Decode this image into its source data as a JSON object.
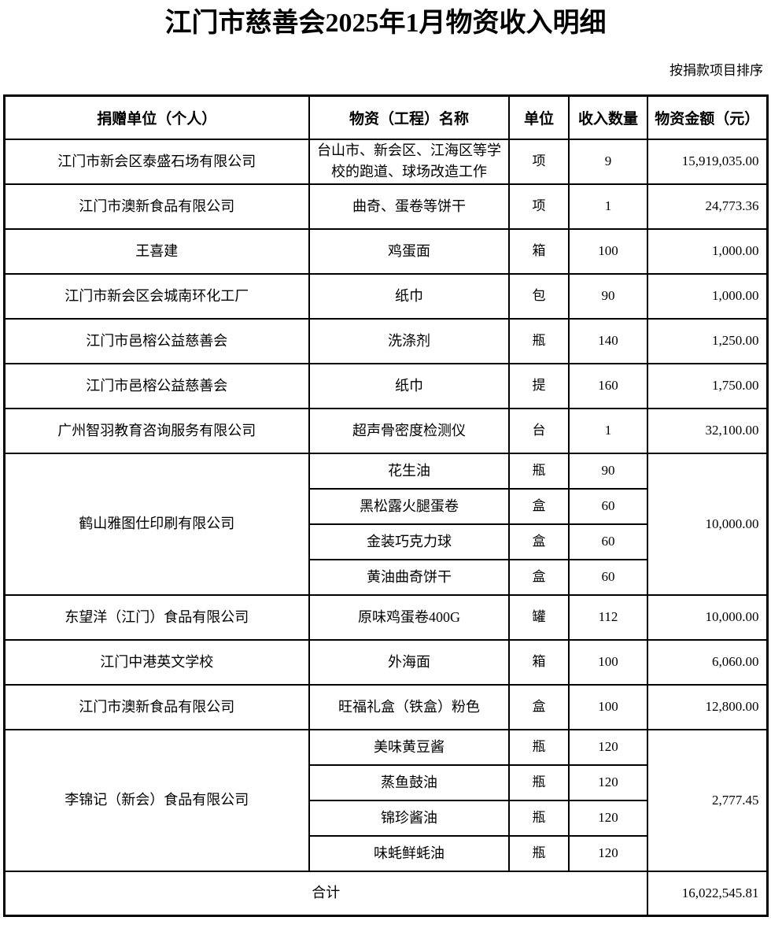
{
  "title": "江门市慈善会2025年1月物资收入明细",
  "sort_note": "按捐款项目排序",
  "table": {
    "columns": [
      "捐赠单位（个人）",
      "物资（工程）名称",
      "单位",
      "收入数量",
      "物资金额（元）"
    ],
    "rows": [
      {
        "kind": "std",
        "cells": [
          {
            "type": "donor",
            "text": "江门市新会区泰盛石场有限公司"
          },
          {
            "type": "item",
            "text": "台山市、新会区、江海区等学校的跑道、球场改造工作"
          },
          {
            "type": "unit",
            "text": "项"
          },
          {
            "type": "quantity",
            "text": "9"
          },
          {
            "type": "amount",
            "text": "15,919,035.00"
          }
        ]
      },
      {
        "kind": "std",
        "cells": [
          {
            "type": "donor",
            "text": "江门市澳新食品有限公司"
          },
          {
            "type": "item",
            "text": "曲奇、蛋卷等饼干"
          },
          {
            "type": "unit",
            "text": "项"
          },
          {
            "type": "quantity",
            "text": "1"
          },
          {
            "type": "amount",
            "text": "24,773.36"
          }
        ]
      },
      {
        "kind": "std",
        "cells": [
          {
            "type": "donor",
            "text": "王喜建"
          },
          {
            "type": "item",
            "text": "鸡蛋面"
          },
          {
            "type": "unit",
            "text": "箱"
          },
          {
            "type": "quantity",
            "text": "100"
          },
          {
            "type": "amount",
            "text": "1,000.00"
          }
        ]
      },
      {
        "kind": "std",
        "cells": [
          {
            "type": "donor",
            "text": "江门市新会区会城南环化工厂"
          },
          {
            "type": "item",
            "text": "纸巾"
          },
          {
            "type": "unit",
            "text": "包"
          },
          {
            "type": "quantity",
            "text": "90"
          },
          {
            "type": "amount",
            "text": "1,000.00"
          }
        ]
      },
      {
        "kind": "std",
        "cells": [
          {
            "type": "donor",
            "text": "江门市邑榕公益慈善会"
          },
          {
            "type": "item",
            "text": "洗涤剂"
          },
          {
            "type": "unit",
            "text": "瓶"
          },
          {
            "type": "quantity",
            "text": "140"
          },
          {
            "type": "amount",
            "text": "1,250.00"
          }
        ]
      },
      {
        "kind": "std",
        "cells": [
          {
            "type": "donor",
            "text": "江门市邑榕公益慈善会"
          },
          {
            "type": "item",
            "text": "纸巾"
          },
          {
            "type": "unit",
            "text": "提"
          },
          {
            "type": "quantity",
            "text": "160"
          },
          {
            "type": "amount",
            "text": "1,750.00"
          }
        ]
      },
      {
        "kind": "std",
        "cells": [
          {
            "type": "donor",
            "text": "广州智羽教育咨询服务有限公司"
          },
          {
            "type": "item",
            "text": "超声骨密度检测仪"
          },
          {
            "type": "unit",
            "text": "台"
          },
          {
            "type": "quantity",
            "text": "1"
          },
          {
            "type": "amount",
            "text": "32,100.00"
          }
        ]
      },
      {
        "kind": "sub",
        "cells": [
          {
            "type": "donor",
            "text": "鹤山雅图仕印刷有限公司",
            "rowspan": 4
          },
          {
            "type": "item",
            "text": "花生油"
          },
          {
            "type": "unit",
            "text": "瓶"
          },
          {
            "type": "quantity",
            "text": "90"
          },
          {
            "type": "amount",
            "text": "10,000.00",
            "rowspan": 4
          }
        ]
      },
      {
        "kind": "sub",
        "cells": [
          {
            "type": "item",
            "text": "黑松露火腿蛋卷"
          },
          {
            "type": "unit",
            "text": "盒"
          },
          {
            "type": "quantity",
            "text": "60"
          }
        ]
      },
      {
        "kind": "sub",
        "cells": [
          {
            "type": "item",
            "text": "金装巧克力球"
          },
          {
            "type": "unit",
            "text": "盒"
          },
          {
            "type": "quantity",
            "text": "60"
          }
        ]
      },
      {
        "kind": "sub",
        "cells": [
          {
            "type": "item",
            "text": "黄油曲奇饼干"
          },
          {
            "type": "unit",
            "text": "盒"
          },
          {
            "type": "quantity",
            "text": "60"
          }
        ]
      },
      {
        "kind": "std",
        "cells": [
          {
            "type": "donor",
            "text": "东望洋（江门）食品有限公司"
          },
          {
            "type": "item",
            "text": "原味鸡蛋卷400G"
          },
          {
            "type": "unit",
            "text": "罐"
          },
          {
            "type": "quantity",
            "text": "112"
          },
          {
            "type": "amount",
            "text": "10,000.00"
          }
        ]
      },
      {
        "kind": "std",
        "cells": [
          {
            "type": "donor",
            "text": "江门中港英文学校"
          },
          {
            "type": "item",
            "text": "外海面"
          },
          {
            "type": "unit",
            "text": "箱"
          },
          {
            "type": "quantity",
            "text": "100"
          },
          {
            "type": "amount",
            "text": "6,060.00"
          }
        ]
      },
      {
        "kind": "std",
        "cells": [
          {
            "type": "donor",
            "text": "江门市澳新食品有限公司"
          },
          {
            "type": "item",
            "text": "旺福礼盒（铁盒）粉色"
          },
          {
            "type": "unit",
            "text": "盒"
          },
          {
            "type": "quantity",
            "text": "100"
          },
          {
            "type": "amount",
            "text": "12,800.00"
          }
        ]
      },
      {
        "kind": "sub",
        "cells": [
          {
            "type": "donor",
            "text": "李锦记（新会）食品有限公司",
            "rowspan": 4
          },
          {
            "type": "item",
            "text": "美味黄豆酱"
          },
          {
            "type": "unit",
            "text": "瓶"
          },
          {
            "type": "quantity",
            "text": "120"
          },
          {
            "type": "amount",
            "text": "2,777.45",
            "rowspan": 4
          }
        ]
      },
      {
        "kind": "sub",
        "cells": [
          {
            "type": "item",
            "text": "蒸鱼鼓油"
          },
          {
            "type": "unit",
            "text": "瓶"
          },
          {
            "type": "quantity",
            "text": "120"
          }
        ]
      },
      {
        "kind": "sub",
        "cells": [
          {
            "type": "item",
            "text": "锦珍酱油"
          },
          {
            "type": "unit",
            "text": "瓶"
          },
          {
            "type": "quantity",
            "text": "120"
          }
        ]
      },
      {
        "kind": "sub",
        "cells": [
          {
            "type": "item",
            "text": "味蚝鲜蚝油"
          },
          {
            "type": "unit",
            "text": "瓶"
          },
          {
            "type": "quantity",
            "text": "120"
          }
        ]
      },
      {
        "kind": "total",
        "cells": [
          {
            "type": "total-label",
            "text": "合计",
            "colspan": 4
          },
          {
            "type": "amount",
            "text": "16,022,545.81"
          }
        ]
      }
    ]
  }
}
